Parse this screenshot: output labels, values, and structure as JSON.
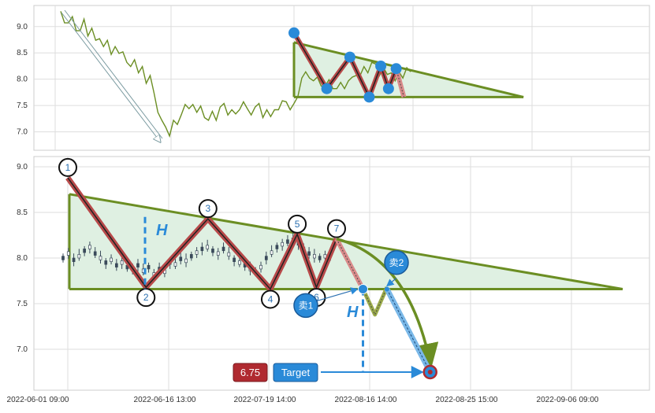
{
  "chart_data": [
    {
      "type": "line",
      "panel": "overview",
      "y_ticks": [
        "9.0",
        "8.5",
        "8.0",
        "7.5",
        "7.0"
      ],
      "ylim": [
        6.65,
        9.4
      ],
      "grid": true,
      "color": "#6b8e23",
      "series": [
        {
          "x": [
            0,
            2,
            4,
            6,
            8,
            10,
            12,
            14,
            16,
            18,
            20,
            22,
            24,
            26,
            28,
            30,
            32,
            34,
            36,
            38,
            40,
            42,
            44,
            46,
            48,
            50,
            52,
            54,
            56,
            58,
            60,
            62,
            64,
            66,
            68,
            70,
            72,
            74,
            76,
            78,
            80,
            82,
            84,
            86,
            88,
            90,
            92,
            94,
            96,
            98,
            100,
            102,
            104,
            106,
            108,
            110,
            112,
            114,
            116,
            118,
            120,
            122,
            124,
            126,
            128,
            130,
            132,
            134,
            136,
            138,
            140,
            142,
            144,
            146,
            148,
            150,
            152,
            154,
            156,
            158,
            160,
            162,
            164,
            166,
            168,
            170,
            172,
            174,
            176,
            178,
            180
          ],
          "values": [
            9.25,
            9.1,
            9.05,
            9.15,
            8.95,
            8.9,
            9.1,
            8.85,
            8.95,
            8.7,
            8.8,
            8.6,
            8.7,
            8.5,
            8.6,
            8.45,
            8.55,
            8.3,
            8.2,
            8.4,
            8.1,
            8.2,
            7.95,
            8.05,
            7.7,
            7.4,
            7.2,
            7.05,
            6.95,
            7.2,
            7.1,
            7.35,
            7.5,
            7.4,
            7.55,
            7.35,
            7.45,
            7.3,
            7.2,
            7.35,
            7.25,
            7.45,
            7.5,
            7.35,
            7.4,
            7.3,
            7.45,
            7.55,
            7.4,
            7.35,
            7.45,
            7.5,
            7.3,
            7.4,
            7.25,
            7.45,
            7.4,
            7.55,
            7.6,
            7.4,
            7.5,
            7.7,
            8.0,
            8.1,
            8.05,
            7.95,
            8.0,
            7.9,
            7.85,
            7.95,
            7.85,
            7.8,
            7.9,
            7.85,
            7.95,
            8.0,
            8.1,
            8.05,
            8.2,
            8.15,
            8.3,
            8.25,
            8.1,
            8.2,
            8.05,
            8.15,
            7.95,
            8.1,
            8.05,
            8.2,
            8.1
          ]
        }
      ],
      "pattern_points": [
        {
          "x": 121,
          "y": 8.88
        },
        {
          "x": 138,
          "y": 7.82
        },
        {
          "x": 150,
          "y": 8.42
        },
        {
          "x": 160,
          "y": 7.66
        },
        {
          "x": 166,
          "y": 8.25
        },
        {
          "x": 170,
          "y": 7.82
        },
        {
          "x": 174,
          "y": 8.2
        }
      ],
      "triangle": {
        "apex_x": 240,
        "top_y": 8.7,
        "bottom_y": 7.66
      },
      "last_segment_end": {
        "x": 178,
        "y": 7.66
      }
    },
    {
      "type": "line",
      "panel": "detail",
      "x_tick_labels": [
        "2022-06-01 09:00",
        "2022-06-16 13:00",
        "2022-07-19 14:00",
        "2022-08-16 14:00",
        "2022-08-25 15:00",
        "2022-09-06 09:00"
      ],
      "y_ticks": [
        "9.0",
        "8.5",
        "8.0",
        "7.5",
        "7.0"
      ],
      "ylim": [
        6.7,
        9.1
      ],
      "grid": true,
      "pattern_points": [
        {
          "label": "1",
          "x": 0,
          "y": 8.88
        },
        {
          "label": "2",
          "x": 16.3,
          "y": 7.68
        },
        {
          "label": "3",
          "x": 29.2,
          "y": 8.43
        },
        {
          "label": "4",
          "x": 42.2,
          "y": 7.66
        },
        {
          "label": "5",
          "x": 47.8,
          "y": 8.26
        },
        {
          "label": "6",
          "x": 51.8,
          "y": 7.68
        },
        {
          "label": "7",
          "x": 56.0,
          "y": 8.21
        }
      ],
      "triangle": {
        "apex_x": 120,
        "top_y": 8.7,
        "bottom_y": 7.66
      },
      "candles": [
        8.0,
        8.05,
        7.98,
        8.02,
        8.08,
        8.12,
        8.05,
        8.0,
        7.95,
        7.98,
        7.92,
        7.95,
        7.9,
        7.88,
        7.92,
        7.86,
        7.9,
        7.82,
        7.88,
        7.85,
        7.95,
        7.93,
        7.99,
        7.97,
        8.02,
        8.06,
        8.1,
        8.12,
        8.08,
        8.05,
        8.1,
        8.04,
        7.98,
        7.95,
        7.92,
        7.88,
        7.85,
        7.9,
        8.0,
        8.06,
        8.12,
        8.15,
        8.18,
        8.2,
        8.16,
        8.1,
        8.05,
        8.02,
        8.0,
        8.02,
        8.04
      ],
      "projection": [
        {
          "x": 56.0,
          "y": 8.21
        },
        {
          "x": 61.5,
          "y": 7.66
        },
        {
          "x": 64.0,
          "y": 7.38
        },
        {
          "x": 66.5,
          "y": 7.68
        }
      ],
      "sell1": {
        "label": "卖1",
        "x": 61.5,
        "y": 7.66
      },
      "sell2": {
        "label": "卖2",
        "x": 66.5,
        "y": 7.66
      },
      "height_label": "H",
      "target_value": "6.75",
      "target_label": "Target",
      "target": {
        "x": 75.5,
        "y": 6.75
      }
    }
  ]
}
